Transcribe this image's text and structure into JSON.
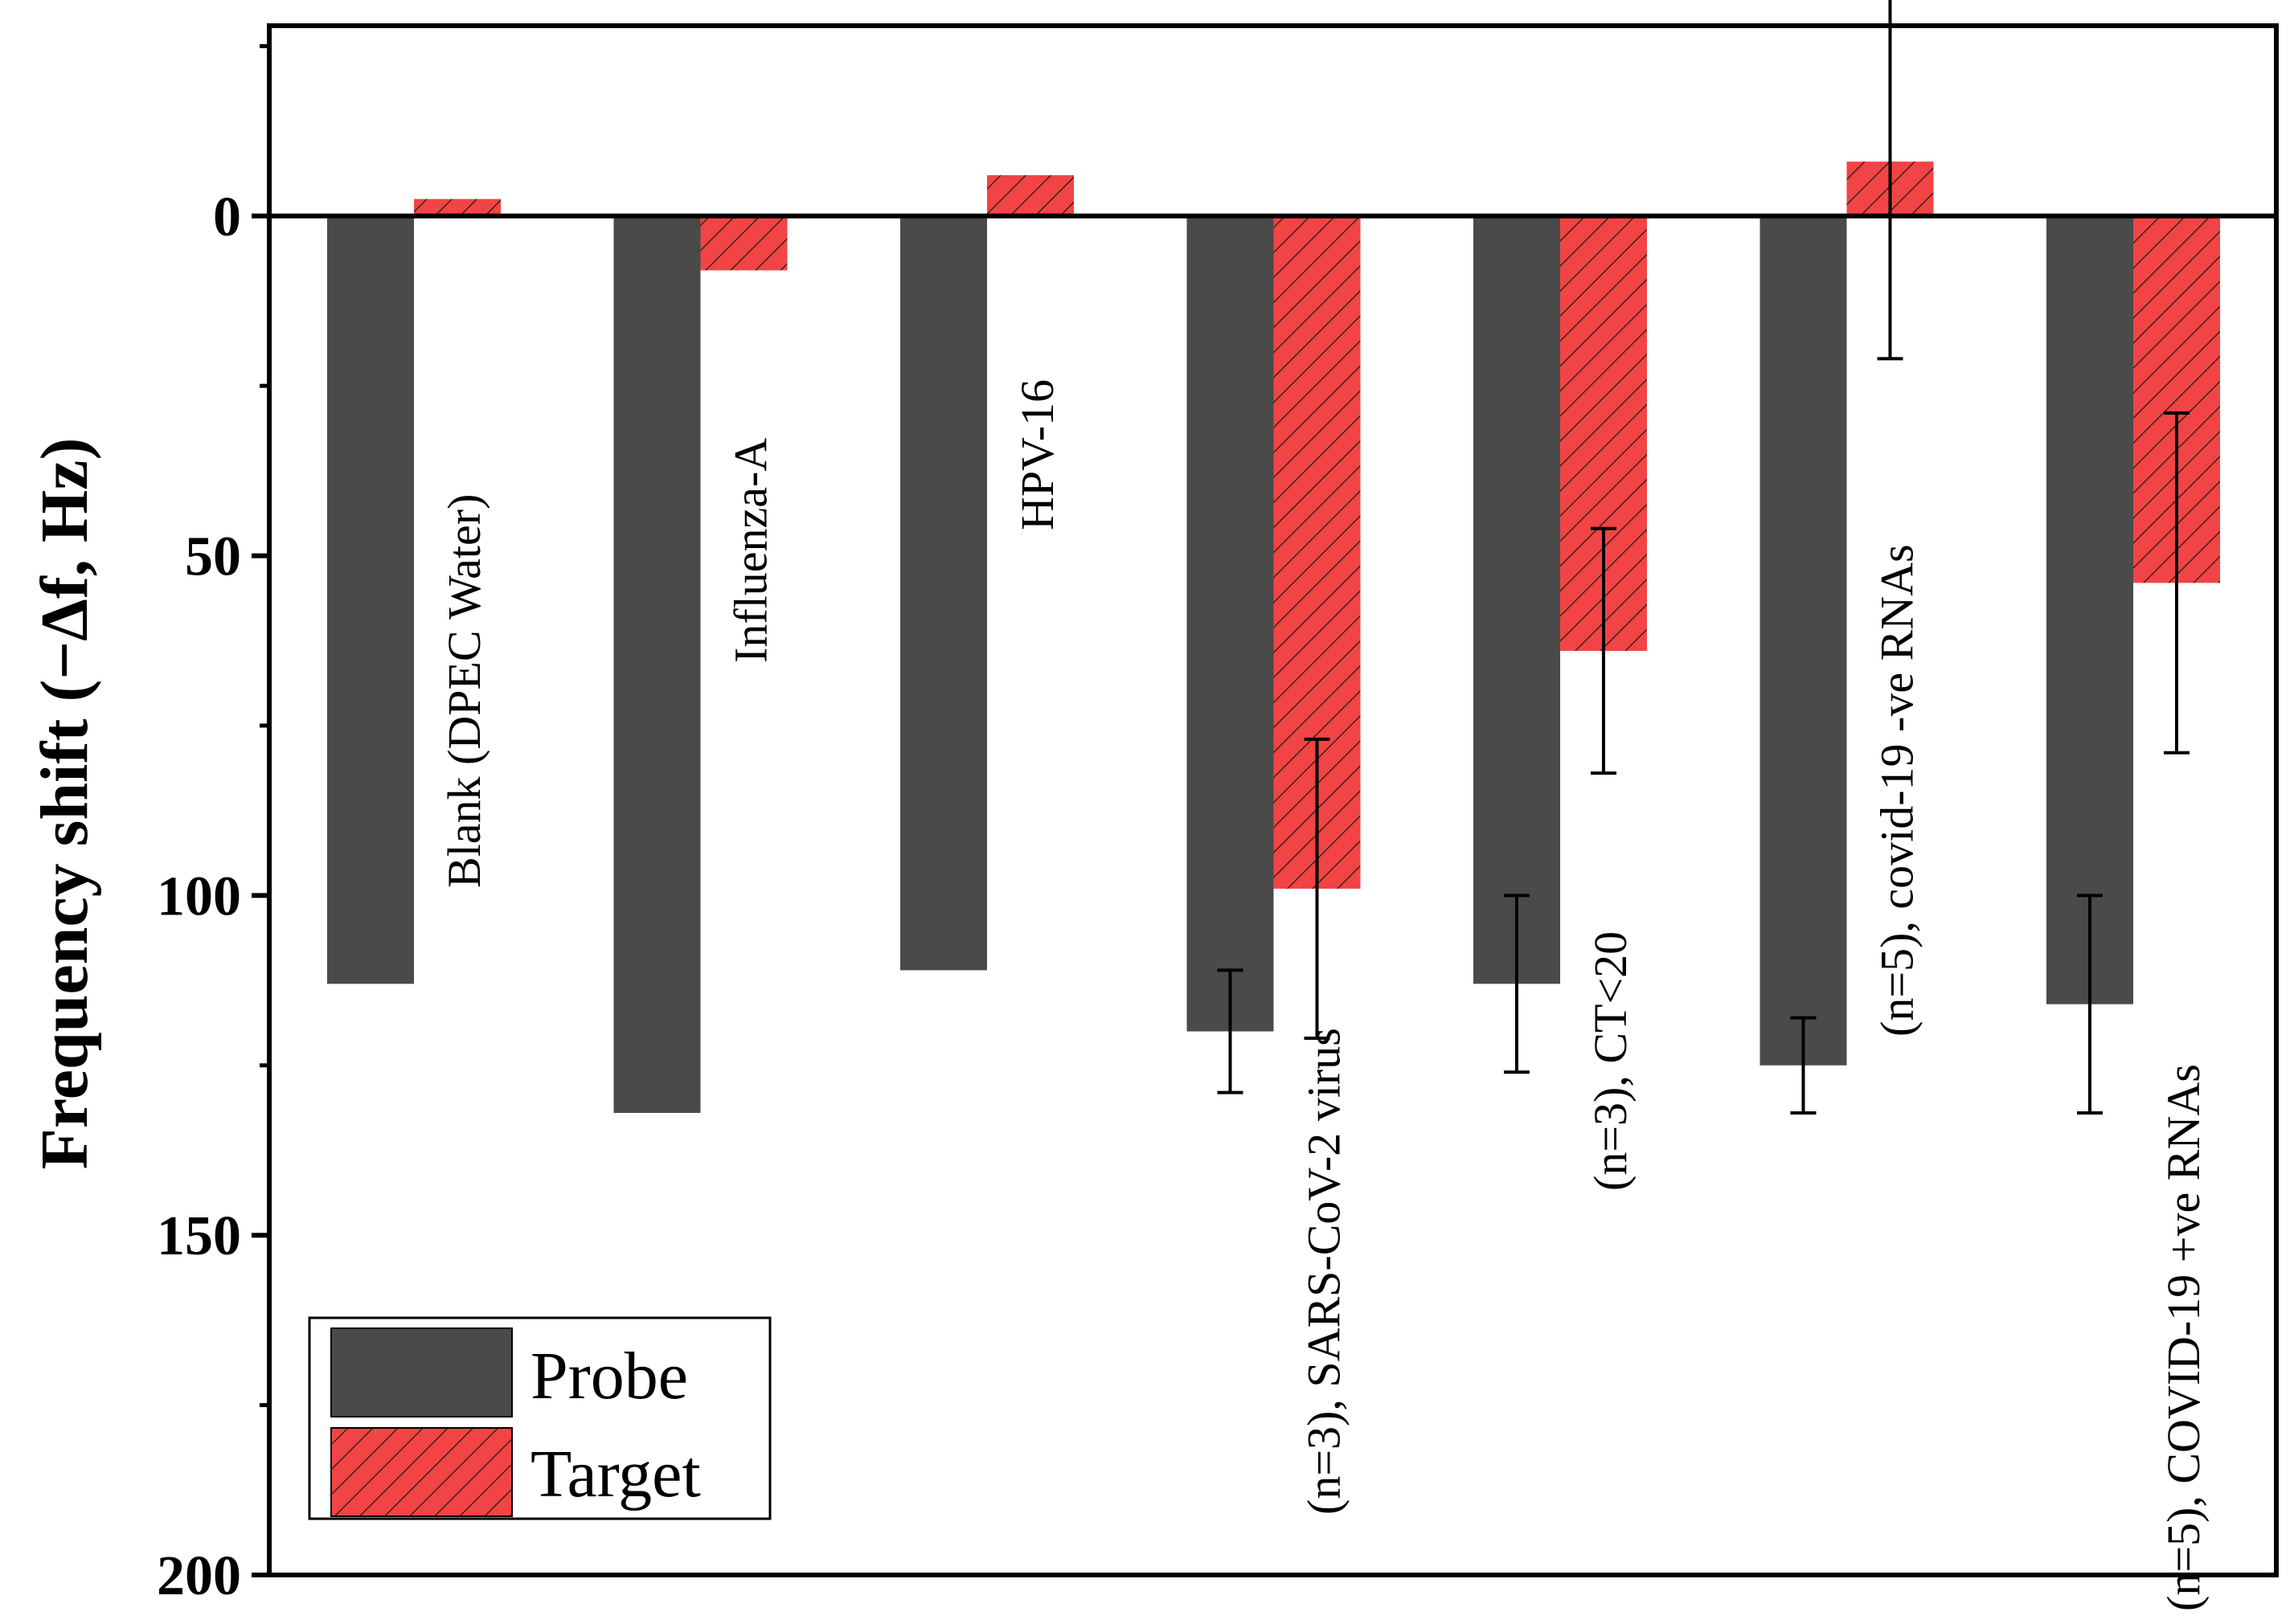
{
  "chart_data": {
    "type": "bar",
    "title": "",
    "xlabel": "",
    "ylabel": "Frequency shift (−Δf, Hz)",
    "ylim": [
      200,
      -28
    ],
    "y_axis_inverted": true,
    "y_ticks": [
      0,
      50,
      100,
      150,
      200
    ],
    "y_tick_labels": [
      "0",
      "50",
      "100",
      "150",
      "200"
    ],
    "grid": false,
    "legend_position": "bottom-left",
    "categories": [
      "Blank (DPEC Water)",
      "Influenza-A",
      "HPV-16",
      "(n=3), SARS-CoV-2 virus",
      "(n=3), CT<20",
      "(n=5), covid-19 -ve RNAs",
      "(n=5), COVID-19 +ve RNAs"
    ],
    "series": [
      {
        "name": "Probe",
        "color": "#4a4a4a",
        "values": [
          113,
          132,
          111,
          120,
          113,
          125,
          116
        ],
        "errors": [
          null,
          null,
          null,
          9,
          13,
          7,
          16
        ]
      },
      {
        "name": "Target",
        "color": "#f24444",
        "hatch": "diagonal",
        "values": [
          -2.5,
          8,
          -6,
          99,
          64,
          -8,
          54
        ],
        "errors": [
          null,
          null,
          null,
          22,
          18,
          29,
          25
        ]
      }
    ]
  }
}
